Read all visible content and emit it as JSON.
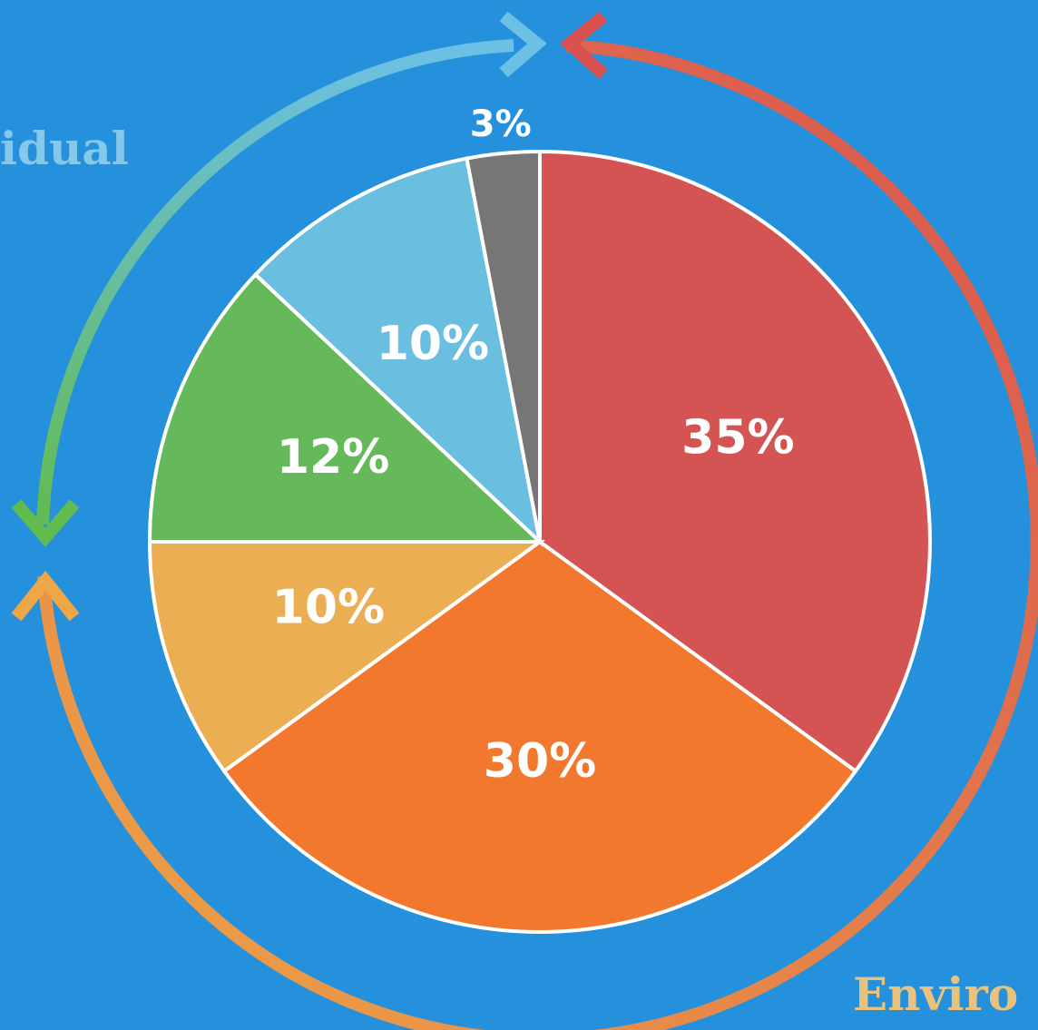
{
  "chart_data": {
    "type": "pie",
    "categories": [
      null,
      null,
      null,
      null,
      null,
      null
    ],
    "values": [
      35,
      30,
      10,
      12,
      10,
      3
    ],
    "value_labels": [
      "35%",
      "30%",
      "10%",
      "12%",
      "10%",
      "3%"
    ],
    "colors": [
      "#d35452",
      "#f1782d",
      "#ebae52",
      "#66b95a",
      "#6abedf",
      "#767676"
    ],
    "annotations": [
      "idual",
      "Enviro"
    ]
  }
}
